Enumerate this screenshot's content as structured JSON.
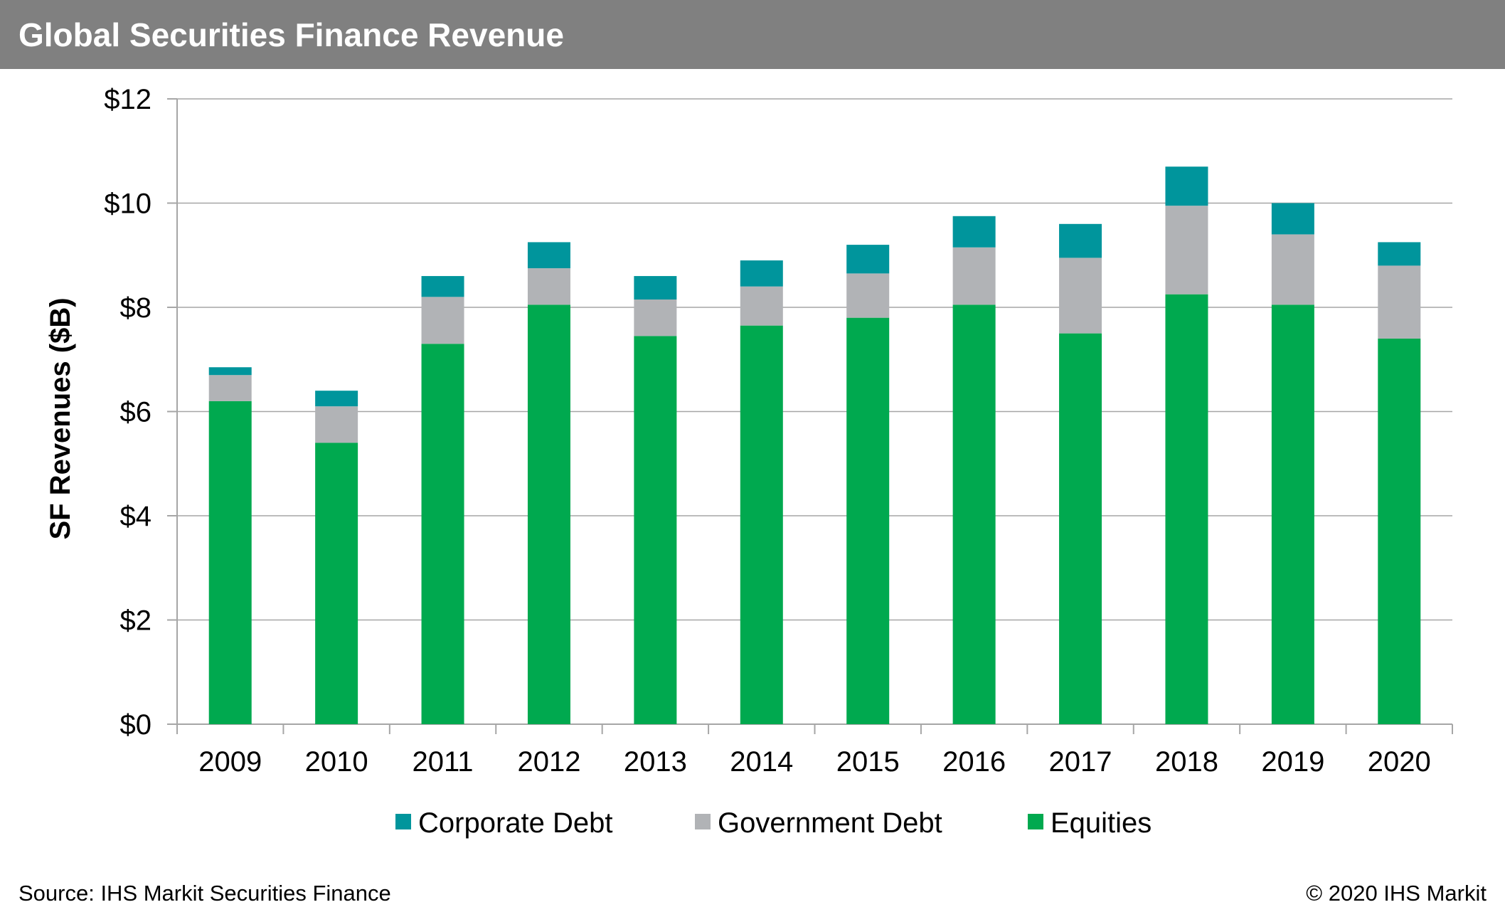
{
  "header": {
    "title": "Global Securities Finance Revenue"
  },
  "footer": {
    "source": "Source: IHS Markit Securities Finance",
    "copyright": "© 2020 IHS Markit"
  },
  "colors": {
    "equities": "#00A94F",
    "government_debt": "#B1B3B6",
    "corporate_debt": "#00959C",
    "gridline": "#A6A6A6",
    "axis": "#A6A6A6",
    "title_bar": "#808080"
  },
  "chart_data": {
    "type": "bar",
    "stacked": true,
    "title": "Global Securities Finance Revenue",
    "xlabel": "",
    "ylabel": "SF Revenues ($B)",
    "ylim": [
      0,
      12
    ],
    "yticks": [
      0,
      2,
      4,
      6,
      8,
      10,
      12
    ],
    "ytick_labels": [
      "$0",
      "$2",
      "$4",
      "$6",
      "$8",
      "$10",
      "$12"
    ],
    "grid": true,
    "legend_position": "bottom",
    "categories": [
      "2009",
      "2010",
      "2011",
      "2012",
      "2013",
      "2014",
      "2015",
      "2016",
      "2017",
      "2018",
      "2019",
      "2020"
    ],
    "series": [
      {
        "name": "Equities",
        "key": "equities",
        "values": [
          6.2,
          5.4,
          7.3,
          8.05,
          7.45,
          7.65,
          7.8,
          8.05,
          7.5,
          8.25,
          8.05,
          7.4
        ]
      },
      {
        "name": "Government Debt",
        "key": "government_debt",
        "values": [
          0.5,
          0.7,
          0.9,
          0.7,
          0.7,
          0.75,
          0.85,
          1.1,
          1.45,
          1.7,
          1.35,
          1.4
        ]
      },
      {
        "name": "Corporate Debt",
        "key": "corporate_debt",
        "values": [
          0.15,
          0.3,
          0.4,
          0.5,
          0.45,
          0.5,
          0.55,
          0.6,
          0.65,
          0.75,
          0.6,
          0.45
        ]
      }
    ],
    "legend_order": [
      "Corporate Debt",
      "Government Debt",
      "Equities"
    ]
  }
}
